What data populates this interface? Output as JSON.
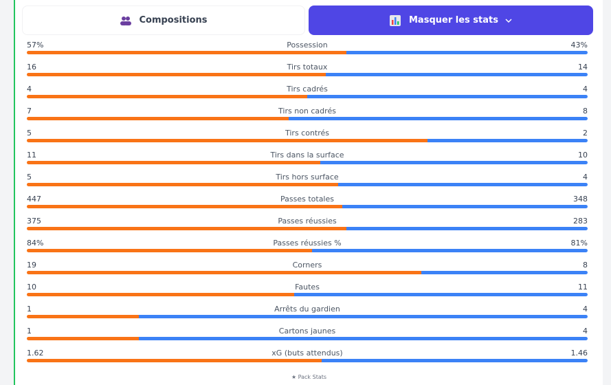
{
  "buttons": {
    "compositions": "Compositions",
    "toggle_stats": "Masquer les stats"
  },
  "stats": [
    {
      "label": "Possession",
      "home": 57,
      "away": 43,
      "home_label": "57%",
      "away_label": "43%"
    },
    {
      "label": "Tirs totaux",
      "home": 16,
      "away": 14
    },
    {
      "label": "Tirs cadrés",
      "home": 4,
      "away": 4
    },
    {
      "label": "Tirs non cadrés",
      "home": 7,
      "away": 8
    },
    {
      "label": "Tirs contrés",
      "home": 5,
      "away": 2
    },
    {
      "label": "Tirs dans la surface",
      "home": 11,
      "away": 10
    },
    {
      "label": "Tirs hors surface",
      "home": 5,
      "away": 4
    },
    {
      "label": "Passes totales",
      "home": 447,
      "away": 348
    },
    {
      "label": "Passes réussies",
      "home": 375,
      "away": 283
    },
    {
      "label": "Passes réussies %",
      "home": 84,
      "away": 81,
      "home_label": "84%",
      "away_label": "81%"
    },
    {
      "label": "Corners",
      "home": 19,
      "away": 8
    },
    {
      "label": "Fautes",
      "home": 10,
      "away": 11
    },
    {
      "label": "Arrêts du gardien",
      "home": 1,
      "away": 4
    },
    {
      "label": "Cartons jaunes",
      "home": 1,
      "away": 4
    },
    {
      "label": "xG (buts attendus)",
      "home": 1.62,
      "away": 1.46
    }
  ],
  "footer": "★ Pack Stats"
}
